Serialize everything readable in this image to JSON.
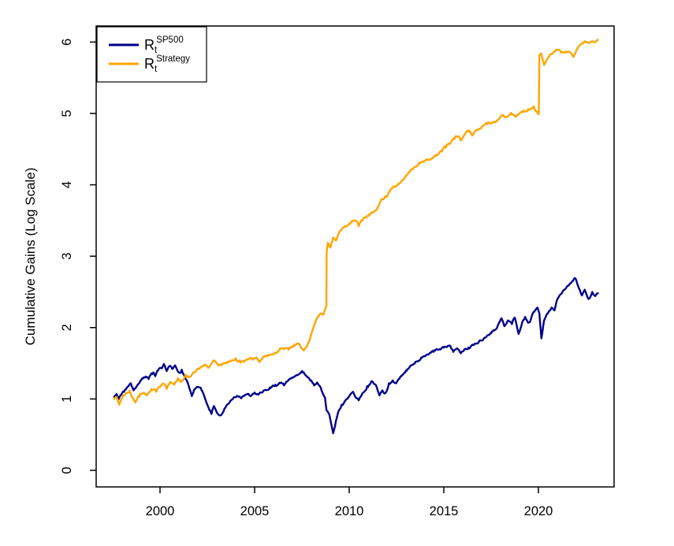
{
  "chart_data": {
    "type": "line",
    "title": "",
    "xlabel": "",
    "ylabel": "Cumulative Gains (Log Scale)",
    "x_ticks": [
      2000,
      2005,
      2010,
      2015,
      2020
    ],
    "x_tick_labels": [
      "2000",
      "2005",
      "2010",
      "2015",
      "2020"
    ],
    "y_ticks": [
      0,
      1,
      2,
      3,
      4,
      5,
      6
    ],
    "y_tick_labels": [
      "0",
      "1",
      "2",
      "3",
      "4",
      "5",
      "6"
    ],
    "xlim": [
      1996.625,
      2024.0
    ],
    "ylim": [
      -0.232,
      6.225
    ],
    "grid": false,
    "background_color": "#ffffff",
    "axis_color": "#000000",
    "legend_position": "topleft",
    "legend": [
      {
        "base": "R",
        "sub": "t",
        "sup": "SP500",
        "color": "#00008B"
      },
      {
        "base": "R",
        "sub": "t",
        "sup": "Strategy",
        "color": "#FFA500"
      }
    ],
    "series": [
      {
        "id": "sp500",
        "name": "R_t^SP500",
        "color": "#00008B",
        "points": [
          [
            1997.58,
            1.03
          ],
          [
            1997.7,
            1.07
          ],
          [
            1997.82,
            1.0
          ],
          [
            1997.95,
            1.06
          ],
          [
            1998.1,
            1.1
          ],
          [
            1998.25,
            1.16
          ],
          [
            1998.45,
            1.22
          ],
          [
            1998.6,
            1.12
          ],
          [
            1998.75,
            1.17
          ],
          [
            1999.0,
            1.26
          ],
          [
            1999.2,
            1.3
          ],
          [
            1999.4,
            1.28
          ],
          [
            1999.6,
            1.35
          ],
          [
            1999.75,
            1.32
          ],
          [
            1999.9,
            1.4
          ],
          [
            2000.1,
            1.43
          ],
          [
            2000.2,
            1.49
          ],
          [
            2000.35,
            1.39
          ],
          [
            2000.5,
            1.46
          ],
          [
            2000.65,
            1.42
          ],
          [
            2000.8,
            1.47
          ],
          [
            2001.0,
            1.37
          ],
          [
            2001.15,
            1.41
          ],
          [
            2001.35,
            1.28
          ],
          [
            2001.55,
            1.15
          ],
          [
            2001.68,
            1.04
          ],
          [
            2001.8,
            1.13
          ],
          [
            2002.0,
            1.17
          ],
          [
            2002.2,
            1.12
          ],
          [
            2002.45,
            0.95
          ],
          [
            2002.6,
            0.85
          ],
          [
            2002.72,
            0.79
          ],
          [
            2002.85,
            0.9
          ],
          [
            2003.0,
            0.81
          ],
          [
            2003.2,
            0.77
          ],
          [
            2003.4,
            0.86
          ],
          [
            2003.6,
            0.93
          ],
          [
            2003.85,
            1.0
          ],
          [
            2004.1,
            1.04
          ],
          [
            2004.3,
            1.01
          ],
          [
            2004.55,
            1.06
          ],
          [
            2004.8,
            1.04
          ],
          [
            2005.0,
            1.09
          ],
          [
            2005.2,
            1.06
          ],
          [
            2005.5,
            1.12
          ],
          [
            2005.8,
            1.16
          ],
          [
            2006.1,
            1.2
          ],
          [
            2006.4,
            1.23
          ],
          [
            2006.55,
            1.19
          ],
          [
            2006.8,
            1.27
          ],
          [
            2007.1,
            1.31
          ],
          [
            2007.3,
            1.34
          ],
          [
            2007.55,
            1.37
          ],
          [
            2007.7,
            1.33
          ],
          [
            2007.85,
            1.3
          ],
          [
            2008.0,
            1.26
          ],
          [
            2008.15,
            1.19
          ],
          [
            2008.3,
            1.23
          ],
          [
            2008.45,
            1.18
          ],
          [
            2008.6,
            1.08
          ],
          [
            2008.72,
            1.02
          ],
          [
            2008.8,
            0.84
          ],
          [
            2008.95,
            0.78
          ],
          [
            2009.05,
            0.65
          ],
          [
            2009.15,
            0.52
          ],
          [
            2009.25,
            0.62
          ],
          [
            2009.4,
            0.8
          ],
          [
            2009.6,
            0.92
          ],
          [
            2009.8,
            0.98
          ],
          [
            2010.0,
            1.04
          ],
          [
            2010.2,
            1.1
          ],
          [
            2010.35,
            1.02
          ],
          [
            2010.5,
            0.98
          ],
          [
            2010.7,
            1.08
          ],
          [
            2010.95,
            1.18
          ],
          [
            2011.2,
            1.25
          ],
          [
            2011.4,
            1.2
          ],
          [
            2011.6,
            1.05
          ],
          [
            2011.75,
            1.12
          ],
          [
            2011.9,
            1.08
          ],
          [
            2012.1,
            1.22
          ],
          [
            2012.3,
            1.26
          ],
          [
            2012.45,
            1.22
          ],
          [
            2012.7,
            1.31
          ],
          [
            2013.0,
            1.4
          ],
          [
            2013.25,
            1.47
          ],
          [
            2013.5,
            1.52
          ],
          [
            2013.8,
            1.58
          ],
          [
            2014.1,
            1.62
          ],
          [
            2014.45,
            1.66
          ],
          [
            2014.7,
            1.69
          ],
          [
            2015.0,
            1.72
          ],
          [
            2015.3,
            1.75
          ],
          [
            2015.5,
            1.66
          ],
          [
            2015.7,
            1.71
          ],
          [
            2015.9,
            1.64
          ],
          [
            2016.1,
            1.7
          ],
          [
            2016.3,
            1.72
          ],
          [
            2016.6,
            1.76
          ],
          [
            2016.9,
            1.82
          ],
          [
            2017.2,
            1.86
          ],
          [
            2017.5,
            1.92
          ],
          [
            2017.8,
            1.99
          ],
          [
            2018.05,
            2.13
          ],
          [
            2018.2,
            2.02
          ],
          [
            2018.4,
            2.1
          ],
          [
            2018.6,
            2.05
          ],
          [
            2018.75,
            2.14
          ],
          [
            2018.95,
            1.91
          ],
          [
            2019.15,
            2.08
          ],
          [
            2019.3,
            2.15
          ],
          [
            2019.5,
            2.07
          ],
          [
            2019.7,
            2.2
          ],
          [
            2019.95,
            2.28
          ],
          [
            2020.05,
            2.2
          ],
          [
            2020.16,
            1.85
          ],
          [
            2020.3,
            2.1
          ],
          [
            2020.5,
            2.2
          ],
          [
            2020.7,
            2.28
          ],
          [
            2020.85,
            2.24
          ],
          [
            2021.0,
            2.4
          ],
          [
            2021.2,
            2.47
          ],
          [
            2021.45,
            2.55
          ],
          [
            2021.7,
            2.62
          ],
          [
            2021.95,
            2.69
          ],
          [
            2022.1,
            2.58
          ],
          [
            2022.3,
            2.45
          ],
          [
            2022.45,
            2.53
          ],
          [
            2022.65,
            2.4
          ],
          [
            2022.85,
            2.5
          ],
          [
            2023.0,
            2.44
          ],
          [
            2023.15,
            2.48
          ]
        ]
      },
      {
        "id": "strategy",
        "name": "R_t^Strategy",
        "color": "#FFA500",
        "points": [
          [
            1997.58,
            1.0
          ],
          [
            1997.7,
            1.03
          ],
          [
            1997.85,
            0.92
          ],
          [
            1998.0,
            1.02
          ],
          [
            1998.2,
            1.08
          ],
          [
            1998.4,
            1.12
          ],
          [
            1998.55,
            1.02
          ],
          [
            1998.7,
            0.95
          ],
          [
            1998.9,
            1.03
          ],
          [
            1999.1,
            1.08
          ],
          [
            1999.3,
            1.05
          ],
          [
            1999.55,
            1.14
          ],
          [
            1999.8,
            1.1
          ],
          [
            2000.0,
            1.17
          ],
          [
            2000.2,
            1.21
          ],
          [
            2000.35,
            1.14
          ],
          [
            2000.55,
            1.24
          ],
          [
            2000.75,
            1.2
          ],
          [
            2000.95,
            1.29
          ],
          [
            2001.15,
            1.26
          ],
          [
            2001.35,
            1.34
          ],
          [
            2001.55,
            1.31
          ],
          [
            2001.75,
            1.37
          ],
          [
            2001.95,
            1.41
          ],
          [
            2002.15,
            1.44
          ],
          [
            2002.4,
            1.48
          ],
          [
            2002.6,
            1.45
          ],
          [
            2002.85,
            1.54
          ],
          [
            2003.05,
            1.49
          ],
          [
            2003.25,
            1.47
          ],
          [
            2003.5,
            1.51
          ],
          [
            2003.75,
            1.54
          ],
          [
            2004.0,
            1.57
          ],
          [
            2004.2,
            1.54
          ],
          [
            2004.45,
            1.52
          ],
          [
            2004.7,
            1.56
          ],
          [
            2004.9,
            1.55
          ],
          [
            2005.1,
            1.58
          ],
          [
            2005.25,
            1.52
          ],
          [
            2005.45,
            1.59
          ],
          [
            2005.8,
            1.62
          ],
          [
            2006.1,
            1.65
          ],
          [
            2006.5,
            1.71
          ],
          [
            2006.8,
            1.69
          ],
          [
            2007.1,
            1.74
          ],
          [
            2007.35,
            1.77
          ],
          [
            2007.6,
            1.68
          ],
          [
            2007.75,
            1.73
          ],
          [
            2007.9,
            1.82
          ],
          [
            2008.05,
            1.95
          ],
          [
            2008.2,
            2.07
          ],
          [
            2008.35,
            2.15
          ],
          [
            2008.5,
            2.2
          ],
          [
            2008.62,
            2.18
          ],
          [
            2008.72,
            2.25
          ],
          [
            2008.79,
            2.3
          ],
          [
            2008.81,
            3.05
          ],
          [
            2008.87,
            3.19
          ],
          [
            2009.0,
            3.12
          ],
          [
            2009.15,
            3.26
          ],
          [
            2009.3,
            3.22
          ],
          [
            2009.45,
            3.32
          ],
          [
            2009.6,
            3.37
          ],
          [
            2009.85,
            3.42
          ],
          [
            2010.1,
            3.47
          ],
          [
            2010.3,
            3.5
          ],
          [
            2010.5,
            3.42
          ],
          [
            2010.7,
            3.5
          ],
          [
            2010.9,
            3.54
          ],
          [
            2011.1,
            3.58
          ],
          [
            2011.3,
            3.62
          ],
          [
            2011.5,
            3.68
          ],
          [
            2011.7,
            3.8
          ],
          [
            2011.9,
            3.84
          ],
          [
            2012.1,
            3.9
          ],
          [
            2012.3,
            3.96
          ],
          [
            2012.55,
            4.0
          ],
          [
            2012.9,
            4.08
          ],
          [
            2013.2,
            4.18
          ],
          [
            2013.45,
            4.25
          ],
          [
            2013.7,
            4.31
          ],
          [
            2014.0,
            4.34
          ],
          [
            2014.3,
            4.36
          ],
          [
            2014.6,
            4.42
          ],
          [
            2014.9,
            4.47
          ],
          [
            2015.1,
            4.52
          ],
          [
            2015.3,
            4.57
          ],
          [
            2015.55,
            4.64
          ],
          [
            2015.75,
            4.68
          ],
          [
            2015.9,
            4.62
          ],
          [
            2016.1,
            4.7
          ],
          [
            2016.3,
            4.75
          ],
          [
            2016.5,
            4.69
          ],
          [
            2016.75,
            4.77
          ],
          [
            2017.0,
            4.81
          ],
          [
            2017.3,
            4.85
          ],
          [
            2017.7,
            4.88
          ],
          [
            2017.95,
            4.93
          ],
          [
            2018.1,
            4.98
          ],
          [
            2018.3,
            4.95
          ],
          [
            2018.55,
            5.01
          ],
          [
            2018.8,
            4.95
          ],
          [
            2019.0,
            5.0
          ],
          [
            2019.2,
            5.04
          ],
          [
            2019.45,
            5.06
          ],
          [
            2019.75,
            5.1
          ],
          [
            2019.9,
            5.03
          ],
          [
            2020.0,
            4.99
          ],
          [
            2020.02,
            5.0
          ],
          [
            2020.05,
            5.82
          ],
          [
            2020.15,
            5.84
          ],
          [
            2020.3,
            5.68
          ],
          [
            2020.45,
            5.76
          ],
          [
            2020.6,
            5.82
          ],
          [
            2020.8,
            5.86
          ],
          [
            2021.0,
            5.89
          ],
          [
            2021.2,
            5.85
          ],
          [
            2021.45,
            5.87
          ],
          [
            2021.7,
            5.85
          ],
          [
            2021.85,
            5.79
          ],
          [
            2022.05,
            5.9
          ],
          [
            2022.25,
            5.97
          ],
          [
            2022.45,
            6.01
          ],
          [
            2022.65,
            5.99
          ],
          [
            2022.85,
            6.01
          ],
          [
            2023.0,
            6.0
          ],
          [
            2023.15,
            6.03
          ]
        ]
      }
    ]
  }
}
